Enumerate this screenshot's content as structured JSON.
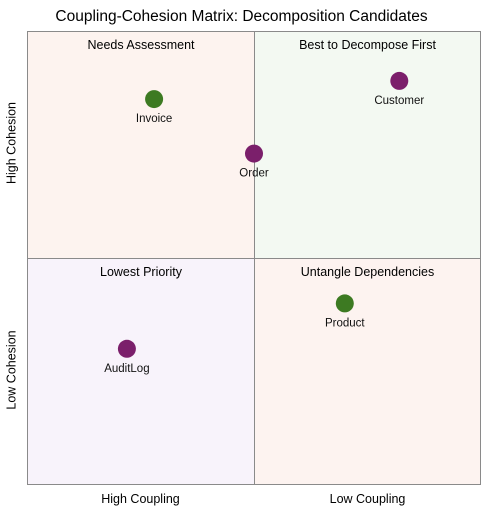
{
  "chart_data": {
    "type": "scatter",
    "title": "Coupling-Cohesion Matrix: Decomposition Candidates",
    "x_axis": {
      "direction": "high-to-low",
      "categories": [
        "High Coupling",
        "Low Coupling"
      ],
      "range": [
        0,
        1
      ]
    },
    "y_axis": {
      "direction": "low-to-high",
      "categories": [
        "Low Cohesion",
        "High Cohesion"
      ],
      "range": [
        0,
        1
      ]
    },
    "quadrants": [
      {
        "name": "Needs Assessment",
        "coupling": "High Coupling",
        "cohesion": "High Cohesion",
        "color": "#fdf3ef"
      },
      {
        "name": "Best to Decompose First",
        "coupling": "Low Coupling",
        "cohesion": "High Cohesion",
        "color": "#f3f9f2"
      },
      {
        "name": "Lowest Priority",
        "coupling": "High Coupling",
        "cohesion": "Low Cohesion",
        "color": "#f8f3fb"
      },
      {
        "name": "Untangle Dependencies",
        "coupling": "Low Coupling",
        "cohesion": "Low Cohesion",
        "color": "#fdf3f0"
      }
    ],
    "points": [
      {
        "label": "Invoice",
        "x": 0.28,
        "y": 0.85,
        "color": "#3d7a22"
      },
      {
        "label": "Customer",
        "x": 0.82,
        "y": 0.89,
        "color": "#7b1f6b"
      },
      {
        "label": "Order",
        "x": 0.5,
        "y": 0.73,
        "color": "#7b1f6b"
      },
      {
        "label": "Product",
        "x": 0.7,
        "y": 0.4,
        "color": "#3d7a22"
      },
      {
        "label": "AuditLog",
        "x": 0.22,
        "y": 0.3,
        "color": "#7b1f6b"
      }
    ],
    "grid": false,
    "legend": "none"
  }
}
